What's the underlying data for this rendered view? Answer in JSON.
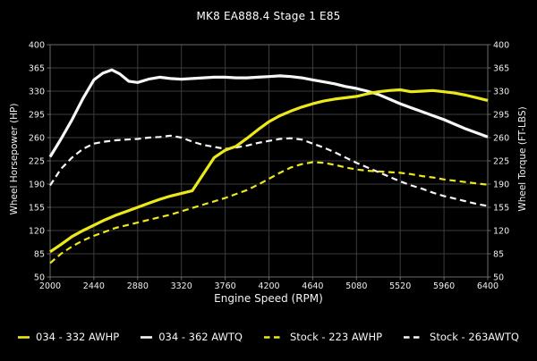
{
  "colors": {
    "background": "#000000",
    "accent_yellow": "#ece81a",
    "curve_white": "#f7f7f7",
    "grid": "#3d3d3d",
    "spine": "#6a6a6a",
    "tick_text": "#efefef"
  },
  "chart_data": {
    "type": "line",
    "title": "MK8 EA888.4 Stage 1 E85",
    "xlabel": "Engine Speed (RPM)",
    "ylabel_left": "Wheel Horsepower (HP)",
    "ylabel_right": "Wheel Torque (FT-LBS)",
    "xlim": [
      2000,
      6400
    ],
    "ylim": [
      50,
      400
    ],
    "x_ticks": [
      2000,
      2440,
      2880,
      3320,
      3760,
      4200,
      4640,
      5080,
      5520,
      5960,
      6400
    ],
    "y_ticks": [
      50,
      85,
      120,
      155,
      190,
      225,
      260,
      295,
      330,
      365,
      400
    ],
    "grid": true,
    "legend_position": "bottom",
    "series": [
      {
        "name": "034 - 332 AWHP",
        "color": "#ece81a",
        "style": "solid",
        "peak": 332,
        "points": [
          [
            2000,
            88
          ],
          [
            2110,
            99
          ],
          [
            2220,
            111
          ],
          [
            2330,
            120
          ],
          [
            2440,
            128
          ],
          [
            2550,
            136
          ],
          [
            2660,
            143
          ],
          [
            2770,
            149
          ],
          [
            2880,
            155
          ],
          [
            2990,
            161
          ],
          [
            3100,
            167
          ],
          [
            3210,
            172
          ],
          [
            3320,
            176
          ],
          [
            3430,
            180
          ],
          [
            3540,
            205
          ],
          [
            3650,
            230
          ],
          [
            3760,
            241
          ],
          [
            3870,
            247
          ],
          [
            3980,
            259
          ],
          [
            4090,
            272
          ],
          [
            4200,
            284
          ],
          [
            4310,
            293
          ],
          [
            4420,
            300
          ],
          [
            4530,
            306
          ],
          [
            4640,
            311
          ],
          [
            4750,
            315
          ],
          [
            4860,
            318
          ],
          [
            4970,
            320
          ],
          [
            5080,
            322
          ],
          [
            5190,
            326
          ],
          [
            5300,
            329
          ],
          [
            5410,
            331
          ],
          [
            5520,
            332
          ],
          [
            5630,
            329
          ],
          [
            5740,
            330
          ],
          [
            5850,
            331
          ],
          [
            5960,
            329
          ],
          [
            6070,
            327
          ],
          [
            6180,
            324
          ],
          [
            6290,
            320
          ],
          [
            6400,
            316
          ]
        ]
      },
      {
        "name": "034 - 362 AWTQ",
        "color": "#f7f7f7",
        "style": "solid",
        "peak": 362,
        "points": [
          [
            2000,
            231
          ],
          [
            2110,
            258
          ],
          [
            2220,
            287
          ],
          [
            2330,
            319
          ],
          [
            2440,
            347
          ],
          [
            2530,
            357
          ],
          [
            2620,
            362
          ],
          [
            2700,
            356
          ],
          [
            2790,
            345
          ],
          [
            2880,
            343
          ],
          [
            2990,
            348
          ],
          [
            3100,
            351
          ],
          [
            3210,
            349
          ],
          [
            3320,
            348
          ],
          [
            3430,
            349
          ],
          [
            3540,
            350
          ],
          [
            3650,
            351
          ],
          [
            3760,
            351
          ],
          [
            3870,
            350
          ],
          [
            3980,
            350
          ],
          [
            4090,
            351
          ],
          [
            4200,
            352
          ],
          [
            4310,
            353
          ],
          [
            4420,
            352
          ],
          [
            4530,
            350
          ],
          [
            4640,
            347
          ],
          [
            4750,
            344
          ],
          [
            4860,
            341
          ],
          [
            4970,
            337
          ],
          [
            5080,
            334
          ],
          [
            5190,
            330
          ],
          [
            5300,
            325
          ],
          [
            5410,
            318
          ],
          [
            5520,
            311
          ],
          [
            5630,
            305
          ],
          [
            5740,
            299
          ],
          [
            5850,
            293
          ],
          [
            5960,
            287
          ],
          [
            6070,
            280
          ],
          [
            6180,
            273
          ],
          [
            6290,
            267
          ],
          [
            6400,
            261
          ]
        ]
      },
      {
        "name": "Stock - 223 AWHP",
        "color": "#ece81a",
        "style": "dashed",
        "peak": 223,
        "points": [
          [
            2000,
            71
          ],
          [
            2110,
            85
          ],
          [
            2220,
            96
          ],
          [
            2330,
            105
          ],
          [
            2440,
            112
          ],
          [
            2550,
            118
          ],
          [
            2660,
            124
          ],
          [
            2770,
            128
          ],
          [
            2880,
            132
          ],
          [
            2990,
            136
          ],
          [
            3100,
            140
          ],
          [
            3210,
            144
          ],
          [
            3320,
            149
          ],
          [
            3430,
            154
          ],
          [
            3540,
            159
          ],
          [
            3650,
            164
          ],
          [
            3760,
            169
          ],
          [
            3870,
            175
          ],
          [
            3980,
            181
          ],
          [
            4090,
            189
          ],
          [
            4200,
            198
          ],
          [
            4310,
            207
          ],
          [
            4420,
            215
          ],
          [
            4530,
            220
          ],
          [
            4640,
            223
          ],
          [
            4750,
            222
          ],
          [
            4860,
            219
          ],
          [
            4970,
            215
          ],
          [
            5080,
            212
          ],
          [
            5190,
            210
          ],
          [
            5300,
            209
          ],
          [
            5410,
            208
          ],
          [
            5520,
            207
          ],
          [
            5630,
            205
          ],
          [
            5740,
            202
          ],
          [
            5850,
            200
          ],
          [
            5960,
            197
          ],
          [
            6070,
            195
          ],
          [
            6180,
            193
          ],
          [
            6290,
            191
          ],
          [
            6400,
            189
          ]
        ]
      },
      {
        "name": "Stock - 263AWTQ",
        "color": "#f7f7f7",
        "style": "dashed",
        "peak": 263,
        "points": [
          [
            2000,
            188
          ],
          [
            2110,
            213
          ],
          [
            2220,
            230
          ],
          [
            2330,
            243
          ],
          [
            2440,
            251
          ],
          [
            2550,
            254
          ],
          [
            2660,
            256
          ],
          [
            2770,
            257
          ],
          [
            2880,
            258
          ],
          [
            2990,
            260
          ],
          [
            3100,
            261
          ],
          [
            3210,
            263
          ],
          [
            3320,
            260
          ],
          [
            3430,
            254
          ],
          [
            3540,
            249
          ],
          [
            3650,
            246
          ],
          [
            3760,
            243
          ],
          [
            3870,
            245
          ],
          [
            3980,
            248
          ],
          [
            4090,
            252
          ],
          [
            4200,
            255
          ],
          [
            4310,
            258
          ],
          [
            4420,
            259
          ],
          [
            4530,
            257
          ],
          [
            4640,
            251
          ],
          [
            4750,
            245
          ],
          [
            4860,
            238
          ],
          [
            4970,
            230
          ],
          [
            5080,
            222
          ],
          [
            5190,
            215
          ],
          [
            5300,
            208
          ],
          [
            5410,
            201
          ],
          [
            5520,
            194
          ],
          [
            5630,
            188
          ],
          [
            5740,
            183
          ],
          [
            5850,
            177
          ],
          [
            5960,
            172
          ],
          [
            6070,
            168
          ],
          [
            6180,
            164
          ],
          [
            6290,
            160
          ],
          [
            6400,
            157
          ]
        ]
      }
    ]
  }
}
